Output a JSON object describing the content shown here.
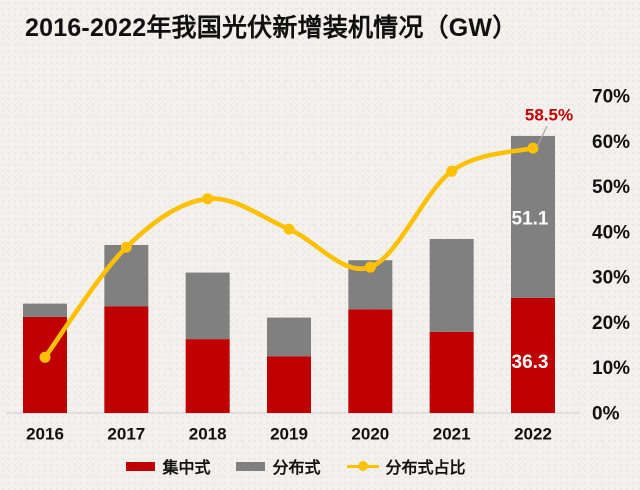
{
  "chart_data": {
    "type": "combo",
    "subtype": "stacked-bar-plus-line",
    "title": "2016-2022年我国光伏新增装机情况（GW）",
    "categories": [
      "2016",
      "2017",
      "2018",
      "2019",
      "2020",
      "2021",
      "2022"
    ],
    "series": [
      {
        "name": "集中式",
        "type": "bar",
        "stack": "pv",
        "unit": "GW",
        "color": "#c00000",
        "values": [
          30.3,
          33.6,
          23.3,
          17.9,
          32.7,
          25.6,
          36.3
        ]
      },
      {
        "name": "分布式",
        "type": "bar",
        "stack": "pv",
        "unit": "GW",
        "color": "#808080",
        "values": [
          4.2,
          19.4,
          21.0,
          12.2,
          15.5,
          29.3,
          51.1
        ]
      },
      {
        "name": "分布式占比",
        "type": "line",
        "axis": "right",
        "unit": "%",
        "color": "#ffc000",
        "values": [
          12.3,
          36.6,
          47.3,
          40.6,
          32.2,
          53.4,
          58.5
        ]
      }
    ],
    "left_axis": {
      "visible": false,
      "min": 0,
      "max": 100,
      "unit": "GW"
    },
    "right_axis": {
      "min": 0,
      "max": 70,
      "step": 10,
      "unit": "%",
      "labels": [
        "0%",
        "10%",
        "20%",
        "30%",
        "40%",
        "50%",
        "60%",
        "70%"
      ]
    },
    "data_labels": {
      "distributed_2022": {
        "text": "51.1",
        "color": "#ffffff"
      },
      "centralized_2022": {
        "text": "36.3",
        "color": "#ffffff"
      },
      "ratio_2022": {
        "text": "58.5%",
        "color": "#c00000"
      }
    },
    "legend": {
      "position": "bottom",
      "items": [
        "集中式",
        "分布式",
        "分布式占比"
      ]
    },
    "grid": false
  },
  "colors": {
    "centralized": "#c00000",
    "distributed": "#808080",
    "ratio_line": "#ffc000",
    "axis_line": "#d9d9d9",
    "leader_line": "#a6a6a6",
    "background": "#f2f1ee",
    "text": "#111111"
  }
}
